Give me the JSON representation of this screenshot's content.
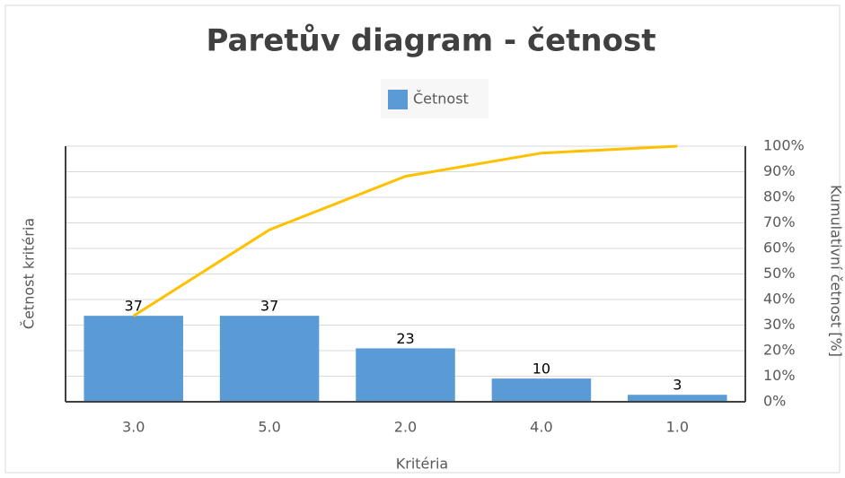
{
  "chart_data": {
    "type": "bar",
    "title": "Paretův diagram - četnost",
    "x_label": "Kritéria",
    "y_label": "Četnost kritéria",
    "y2_label": "Kumulativní četnost [%]",
    "categories": [
      "3.0",
      "5.0",
      "2.0",
      "4.0",
      "1.0"
    ],
    "series": [
      {
        "name": "Četnost",
        "type": "bar",
        "color": "#5b9bd5",
        "values": [
          37,
          37,
          23,
          10,
          3
        ]
      },
      {
        "type": "line",
        "axis": "y2",
        "color": "#ffc000",
        "values": [
          33.6,
          67.3,
          88.2,
          97.3,
          100
        ]
      }
    ],
    "ylim": [
      0,
      110
    ],
    "y2lim": [
      0,
      100
    ],
    "y2ticks": [
      {
        "value": 0,
        "label": "0%"
      },
      {
        "value": 10,
        "label": "10%"
      },
      {
        "value": 20,
        "label": "20%"
      },
      {
        "value": 30,
        "label": "30%"
      },
      {
        "value": 40,
        "label": "40%"
      },
      {
        "value": 50,
        "label": "50%"
      },
      {
        "value": 60,
        "label": "60%"
      },
      {
        "value": 70,
        "label": "70%"
      },
      {
        "value": 80,
        "label": "80%"
      },
      {
        "value": 90,
        "label": "90%"
      },
      {
        "value": 100,
        "label": "100%"
      }
    ],
    "grid": true,
    "legend": "top"
  }
}
